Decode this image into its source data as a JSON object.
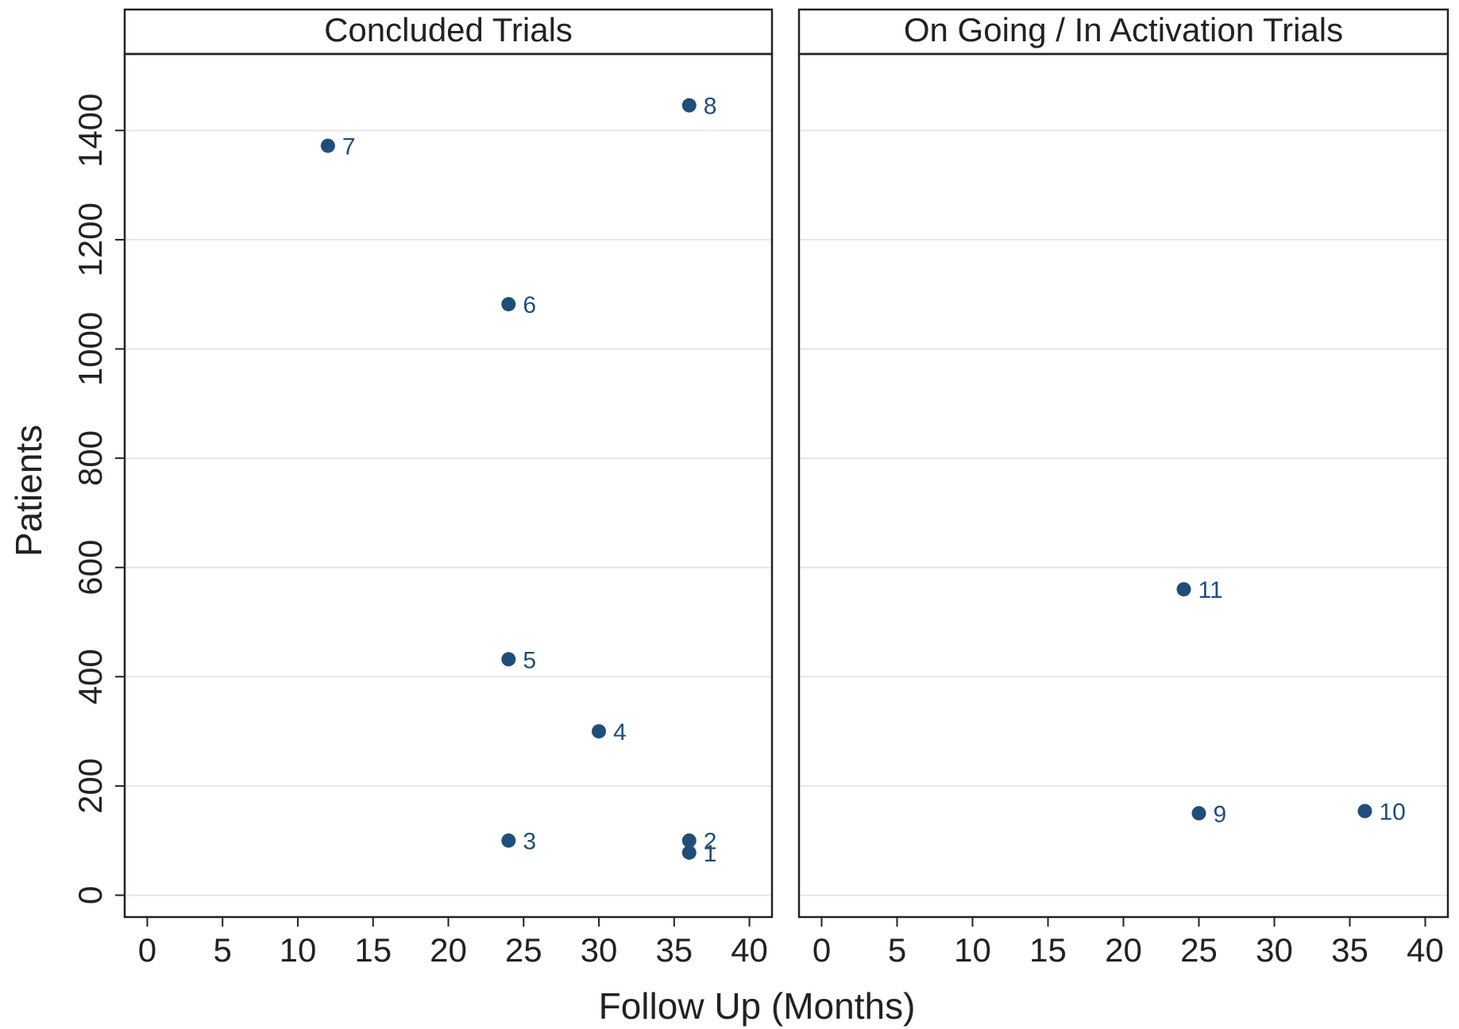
{
  "chart_data": {
    "type": "scatter",
    "xlabel": "Follow Up (Months)",
    "ylabel": "Patients",
    "xlim": [
      -1.5,
      41.5
    ],
    "ylim": [
      -40,
      1540
    ],
    "xticks": [
      0,
      5,
      10,
      15,
      20,
      25,
      30,
      35,
      40
    ],
    "yticks": [
      0,
      200,
      400,
      600,
      800,
      1000,
      1200,
      1400
    ],
    "grid": true,
    "marker_color": "#1f4e79",
    "panels": [
      {
        "title": "Concluded Trials",
        "points": [
          {
            "label": "1",
            "x": 36,
            "y": 78
          },
          {
            "label": "2",
            "x": 36,
            "y": 100
          },
          {
            "label": "3",
            "x": 24,
            "y": 100
          },
          {
            "label": "4",
            "x": 30,
            "y": 300
          },
          {
            "label": "5",
            "x": 24,
            "y": 432
          },
          {
            "label": "6",
            "x": 24,
            "y": 1082
          },
          {
            "label": "7",
            "x": 12,
            "y": 1372
          },
          {
            "label": "8",
            "x": 36,
            "y": 1446
          }
        ]
      },
      {
        "title": "On Going / In Activation Trials",
        "points": [
          {
            "label": "9",
            "x": 25,
            "y": 150
          },
          {
            "label": "10",
            "x": 36,
            "y": 154
          },
          {
            "label": "11",
            "x": 24,
            "y": 560
          }
        ]
      }
    ]
  }
}
